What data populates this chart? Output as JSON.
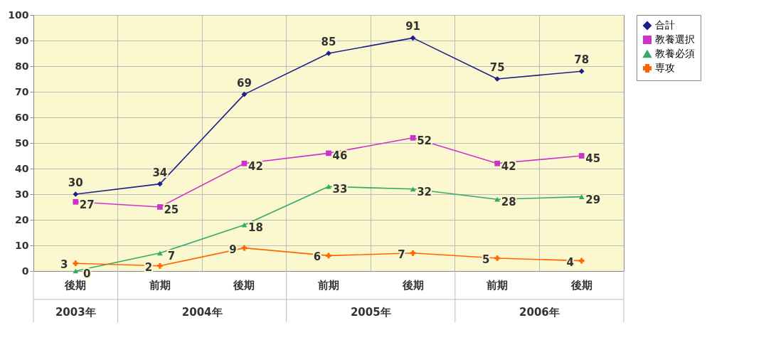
{
  "chart_data": {
    "type": "line",
    "categories": [
      "後期",
      "前期",
      "後期",
      "前期",
      "後期",
      "前期",
      "後期"
    ],
    "series": [
      {
        "name": "合計",
        "color": "#1f1f8a",
        "marker": "diamond",
        "values": [
          30,
          34,
          69,
          85,
          91,
          75,
          78
        ]
      },
      {
        "name": "教養選択",
        "color": "#cc33cc",
        "marker": "square",
        "values": [
          27,
          25,
          42,
          46,
          52,
          42,
          45
        ]
      },
      {
        "name": "教養必須",
        "color": "#33aa66",
        "marker": "triangle",
        "values": [
          0,
          7,
          18,
          33,
          32,
          28,
          29
        ]
      },
      {
        "name": "専攻",
        "color": "#ff6600",
        "marker": "cross",
        "values": [
          3,
          2,
          9,
          6,
          7,
          5,
          4
        ]
      }
    ],
    "annotations": [
      "2003年",
      "2004年",
      "2005年",
      "2006年"
    ],
    "ylim": [
      0,
      100
    ],
    "yticks": [
      0,
      10,
      20,
      30,
      40,
      50,
      60,
      70,
      80,
      90,
      100
    ],
    "grid": true,
    "legend": "right",
    "data_labels": true,
    "line_style": "solid"
  }
}
